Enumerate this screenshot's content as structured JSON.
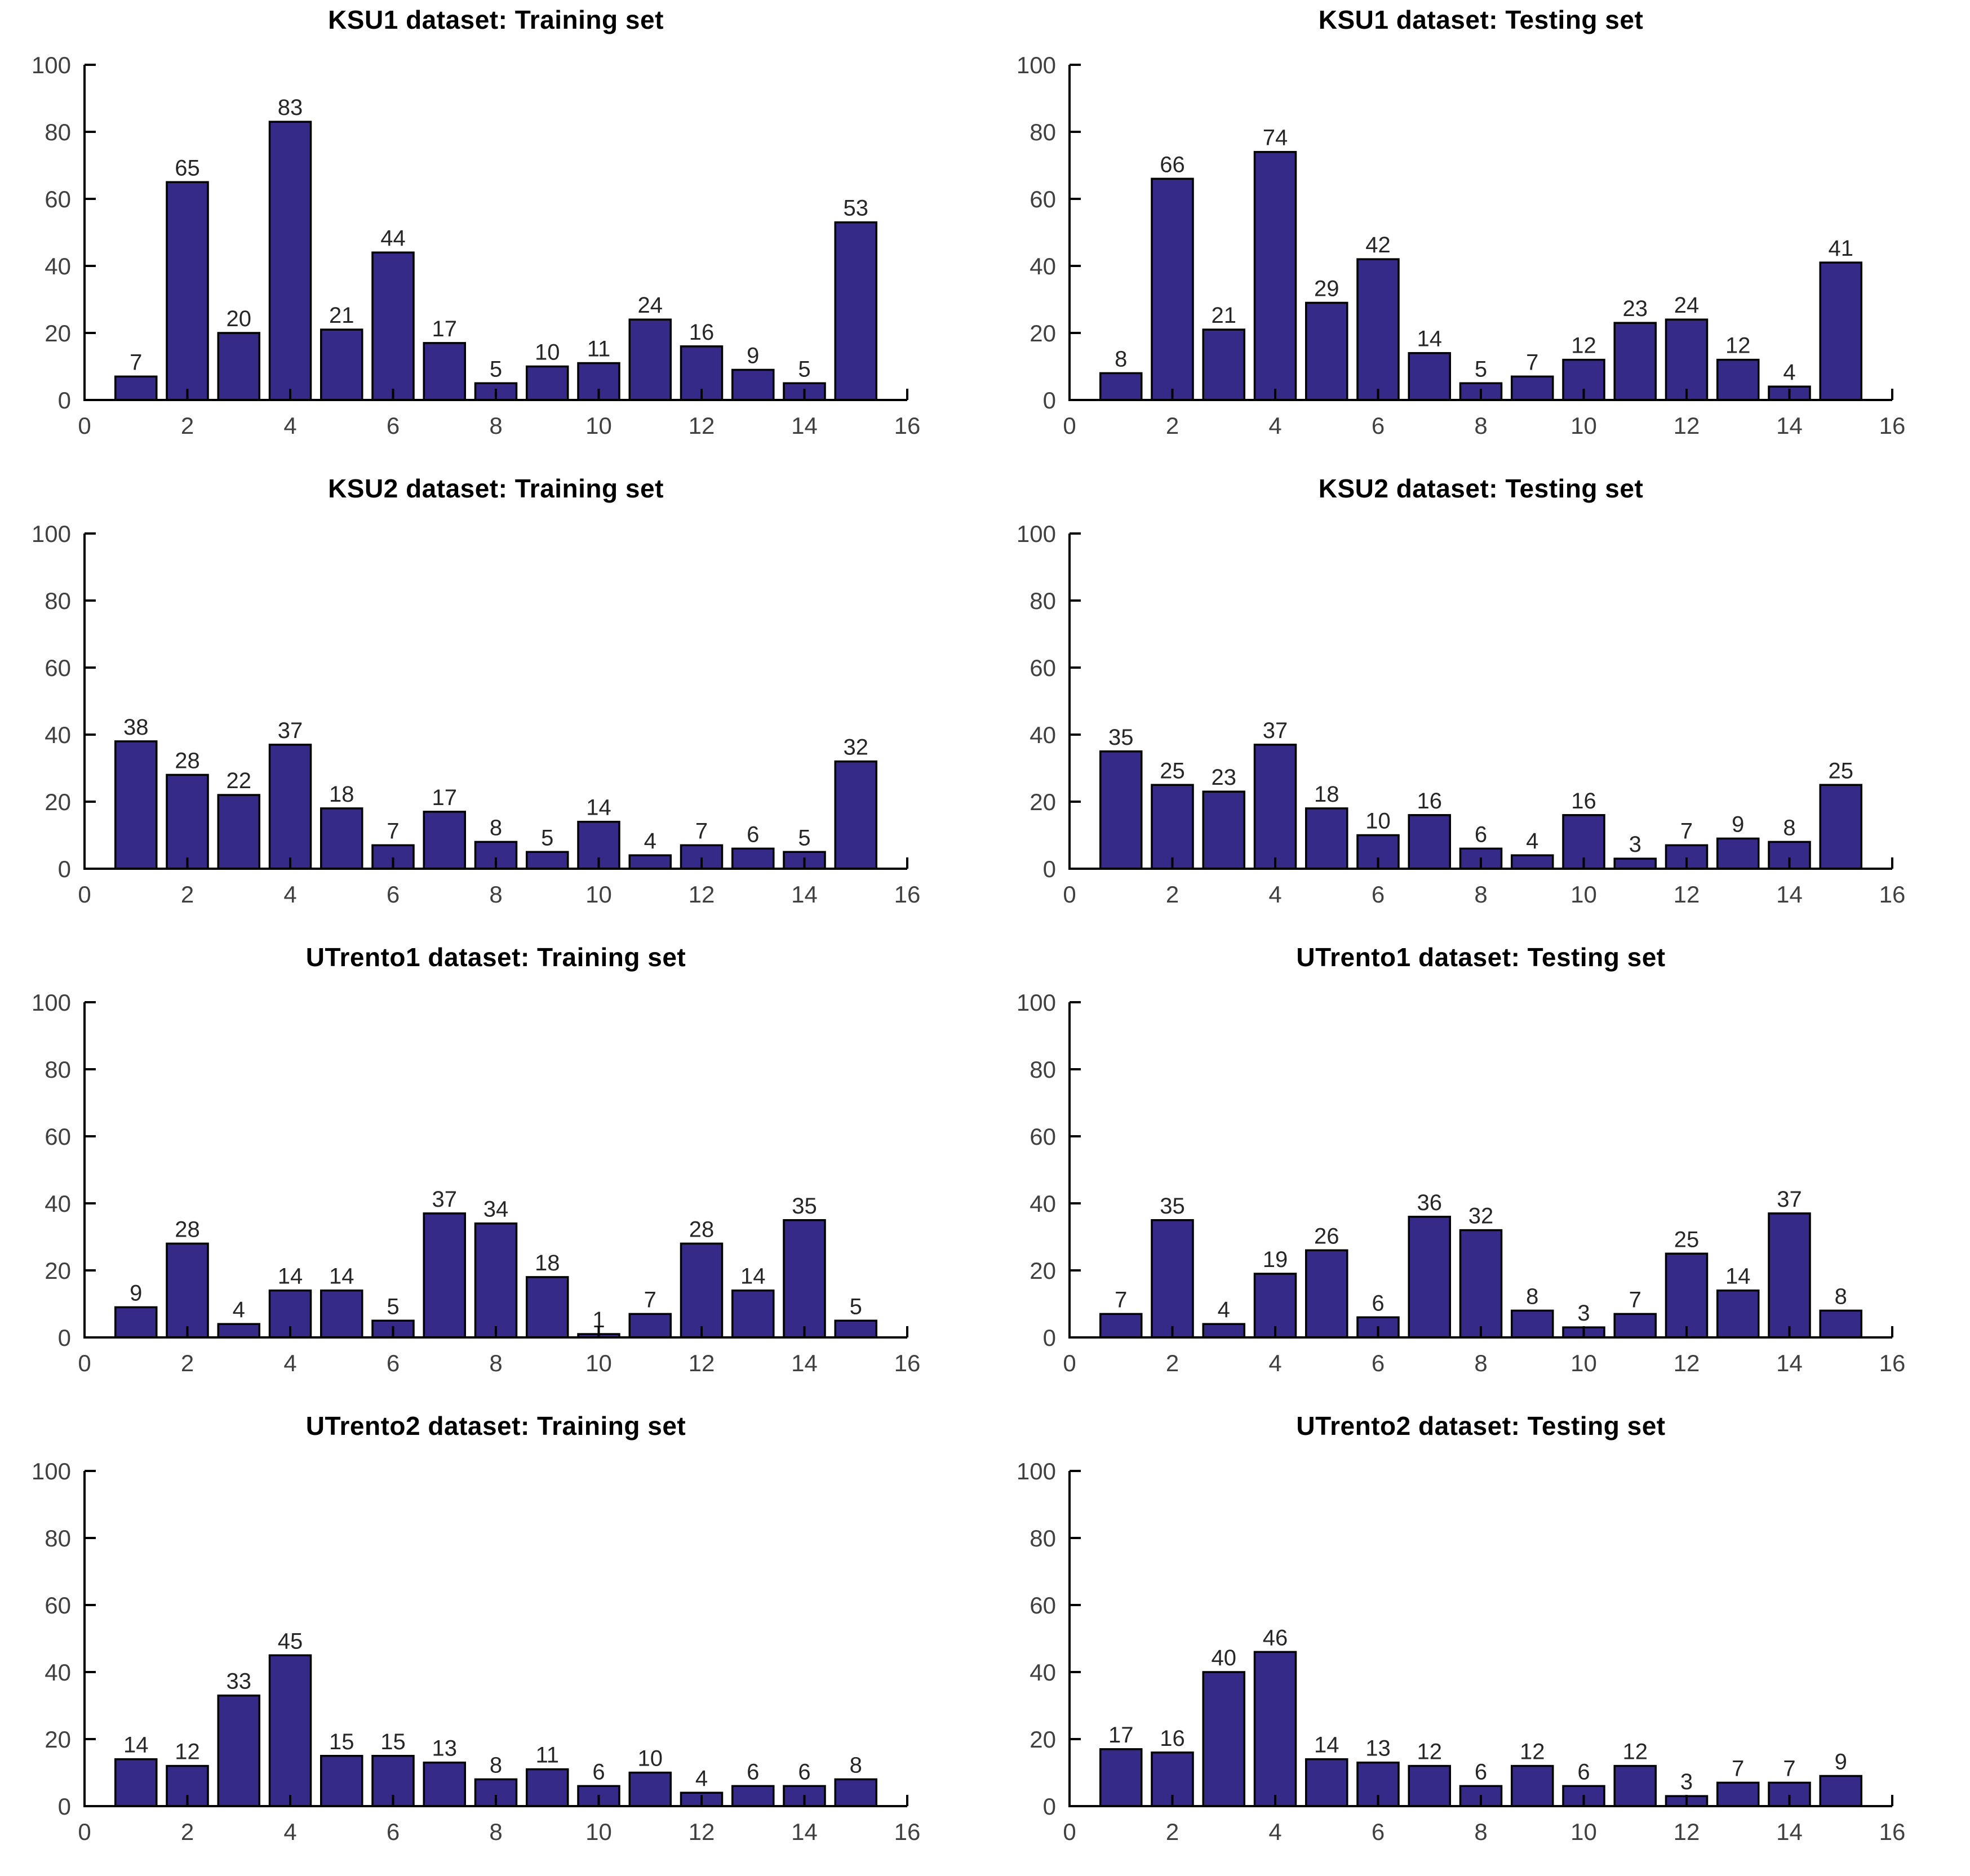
{
  "figure": {
    "bar_color": "#352a87",
    "bar_edge_color": "#000000",
    "axis_color": "#000000",
    "tick_label_color": "#404040",
    "value_label_color": "#262626",
    "title_color": "#000000"
  },
  "chart_data": [
    {
      "type": "bar",
      "title": "KSU1 dataset: Training set",
      "categories": [
        1,
        2,
        3,
        4,
        5,
        6,
        7,
        8,
        9,
        10,
        11,
        12,
        13,
        14,
        15
      ],
      "values": [
        7,
        65,
        20,
        83,
        21,
        44,
        17,
        5,
        10,
        11,
        24,
        16,
        9,
        5,
        53
      ],
      "xlim": [
        0,
        16
      ],
      "ylim": [
        0,
        100
      ],
      "xticks": [
        0,
        2,
        4,
        6,
        8,
        10,
        12,
        14,
        16
      ],
      "yticks": [
        0,
        20,
        40,
        60,
        80,
        100
      ],
      "bar_value_labels": true,
      "grid": false,
      "xlabel": "",
      "ylabel": ""
    },
    {
      "type": "bar",
      "title": "KSU1 dataset: Testing set",
      "categories": [
        1,
        2,
        3,
        4,
        5,
        6,
        7,
        8,
        9,
        10,
        11,
        12,
        13,
        14,
        15
      ],
      "values": [
        8,
        66,
        21,
        74,
        29,
        42,
        14,
        5,
        7,
        12,
        23,
        24,
        12,
        4,
        41
      ],
      "xlim": [
        0,
        16
      ],
      "ylim": [
        0,
        100
      ],
      "xticks": [
        0,
        2,
        4,
        6,
        8,
        10,
        12,
        14,
        16
      ],
      "yticks": [
        0,
        20,
        40,
        60,
        80,
        100
      ],
      "bar_value_labels": true,
      "grid": false,
      "xlabel": "",
      "ylabel": ""
    },
    {
      "type": "bar",
      "title": "KSU2 dataset: Training set",
      "categories": [
        1,
        2,
        3,
        4,
        5,
        6,
        7,
        8,
        9,
        10,
        11,
        12,
        13,
        14,
        15
      ],
      "values": [
        38,
        28,
        22,
        37,
        18,
        7,
        17,
        8,
        5,
        14,
        4,
        7,
        6,
        5,
        32
      ],
      "xlim": [
        0,
        16
      ],
      "ylim": [
        0,
        100
      ],
      "xticks": [
        0,
        2,
        4,
        6,
        8,
        10,
        12,
        14,
        16
      ],
      "yticks": [
        0,
        20,
        40,
        60,
        80,
        100
      ],
      "bar_value_labels": true,
      "grid": false,
      "xlabel": "",
      "ylabel": ""
    },
    {
      "type": "bar",
      "title": "KSU2 dataset: Testing set",
      "categories": [
        1,
        2,
        3,
        4,
        5,
        6,
        7,
        8,
        9,
        10,
        11,
        12,
        13,
        14,
        15
      ],
      "values": [
        35,
        25,
        23,
        37,
        18,
        10,
        16,
        6,
        4,
        16,
        3,
        7,
        9,
        8,
        25
      ],
      "xlim": [
        0,
        16
      ],
      "ylim": [
        0,
        100
      ],
      "xticks": [
        0,
        2,
        4,
        6,
        8,
        10,
        12,
        14,
        16
      ],
      "yticks": [
        0,
        20,
        40,
        60,
        80,
        100
      ],
      "bar_value_labels": true,
      "grid": false,
      "xlabel": "",
      "ylabel": ""
    },
    {
      "type": "bar",
      "title": "UTrento1 dataset: Training set",
      "categories": [
        1,
        2,
        3,
        4,
        5,
        6,
        7,
        8,
        9,
        10,
        11,
        12,
        13,
        14,
        15
      ],
      "values": [
        9,
        28,
        4,
        14,
        14,
        5,
        37,
        34,
        18,
        1,
        7,
        28,
        14,
        35,
        5
      ],
      "xlim": [
        0,
        16
      ],
      "ylim": [
        0,
        100
      ],
      "xticks": [
        0,
        2,
        4,
        6,
        8,
        10,
        12,
        14,
        16
      ],
      "yticks": [
        0,
        20,
        40,
        60,
        80,
        100
      ],
      "bar_value_labels": true,
      "grid": false,
      "xlabel": "",
      "ylabel": ""
    },
    {
      "type": "bar",
      "title": "UTrento1 dataset: Testing set",
      "categories": [
        1,
        2,
        3,
        4,
        5,
        6,
        7,
        8,
        9,
        10,
        11,
        12,
        13,
        14,
        15
      ],
      "values": [
        7,
        35,
        4,
        19,
        26,
        6,
        36,
        32,
        8,
        3,
        7,
        25,
        14,
        37,
        8
      ],
      "xlim": [
        0,
        16
      ],
      "ylim": [
        0,
        100
      ],
      "xticks": [
        0,
        2,
        4,
        6,
        8,
        10,
        12,
        14,
        16
      ],
      "yticks": [
        0,
        20,
        40,
        60,
        80,
        100
      ],
      "bar_value_labels": true,
      "grid": false,
      "xlabel": "",
      "ylabel": ""
    },
    {
      "type": "bar",
      "title": "UTrento2 dataset: Training set",
      "categories": [
        1,
        2,
        3,
        4,
        5,
        6,
        7,
        8,
        9,
        10,
        11,
        12,
        13,
        14,
        15
      ],
      "values": [
        14,
        12,
        33,
        45,
        15,
        15,
        13,
        8,
        11,
        6,
        10,
        4,
        6,
        6,
        8
      ],
      "xlim": [
        0,
        16
      ],
      "ylim": [
        0,
        100
      ],
      "xticks": [
        0,
        2,
        4,
        6,
        8,
        10,
        12,
        14,
        16
      ],
      "yticks": [
        0,
        20,
        40,
        60,
        80,
        100
      ],
      "bar_value_labels": true,
      "grid": false,
      "xlabel": "",
      "ylabel": ""
    },
    {
      "type": "bar",
      "title": "UTrento2 dataset: Testing set",
      "categories": [
        1,
        2,
        3,
        4,
        5,
        6,
        7,
        8,
        9,
        10,
        11,
        12,
        13,
        14,
        15
      ],
      "values": [
        17,
        16,
        40,
        46,
        14,
        13,
        12,
        6,
        12,
        6,
        12,
        3,
        7,
        7,
        9
      ],
      "xlim": [
        0,
        16
      ],
      "ylim": [
        0,
        100
      ],
      "xticks": [
        0,
        2,
        4,
        6,
        8,
        10,
        12,
        14,
        16
      ],
      "yticks": [
        0,
        20,
        40,
        60,
        80,
        100
      ],
      "bar_value_labels": true,
      "grid": false,
      "xlabel": "",
      "ylabel": ""
    }
  ]
}
